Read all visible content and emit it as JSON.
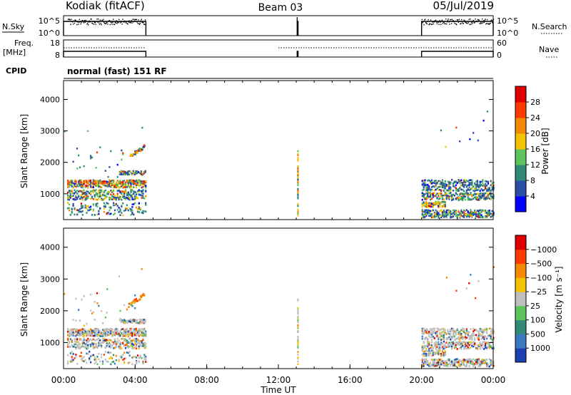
{
  "header": {
    "station": "Kodiak (fitACF)",
    "beam": "Beam 03",
    "date": "05/Jul/2019"
  },
  "nsky_panel": {
    "left_label": "N.Sky",
    "right_label": "N.Search",
    "left_ticks": [
      "10^5",
      "10^0"
    ],
    "right_ticks": [
      "10^5",
      "10^0"
    ]
  },
  "freq_panel": {
    "left_label_top": "Freq.",
    "left_label_bottom": "[MHz]",
    "right_label": "Nave",
    "left_ticks": [
      "18",
      "8"
    ],
    "right_ticks": [
      "60",
      "0"
    ]
  },
  "cpid": {
    "label": "CPID",
    "text": "normal (fast) 151 RF"
  },
  "chart_data": [
    {
      "type": "heatmap",
      "name": "power",
      "ylabel": "Slant Range [km]",
      "ylim": [
        180,
        4600
      ],
      "yticks": [
        1000,
        2000,
        3000,
        4000
      ],
      "colorbar": {
        "label": "Power [dB]",
        "ticks": [
          "4",
          "8",
          "12",
          "16",
          "20",
          "24",
          "28"
        ],
        "colors": [
          "#0000ff",
          "#2a4fa8",
          "#2f8a7a",
          "#5bc45b",
          "#f2c400",
          "#f58a00",
          "#ff3b00",
          "#e00000"
        ]
      },
      "data_segments_ut": [
        [
          0.0,
          4.6
        ],
        [
          13.05,
          13.1
        ],
        [
          20.0,
          24.0
        ]
      ]
    },
    {
      "type": "heatmap",
      "name": "velocity",
      "ylabel": "Slant Range [km]",
      "ylim": [
        180,
        4600
      ],
      "yticks": [
        1000,
        2000,
        3000,
        4000
      ],
      "xlabel": "Time UT",
      "xticks": [
        "00:00",
        "04:00",
        "08:00",
        "12:00",
        "16:00",
        "20:00",
        "00:00"
      ],
      "xlim": [
        0,
        24
      ],
      "colorbar": {
        "label": "Velocity [m s⁻¹]",
        "ticks": [
          "1000",
          "500",
          "100",
          "25",
          "−25",
          "−100",
          "−500",
          "−1000"
        ],
        "colors": [
          "#1a3fb0",
          "#3d78c2",
          "#2f8a7a",
          "#5bc45b",
          "#bfbfbf",
          "#f2c400",
          "#f58a00",
          "#ff3b00",
          "#e00000"
        ]
      },
      "data_segments_ut": [
        [
          0.0,
          4.6
        ],
        [
          13.05,
          13.1
        ],
        [
          20.0,
          24.0
        ]
      ]
    }
  ]
}
